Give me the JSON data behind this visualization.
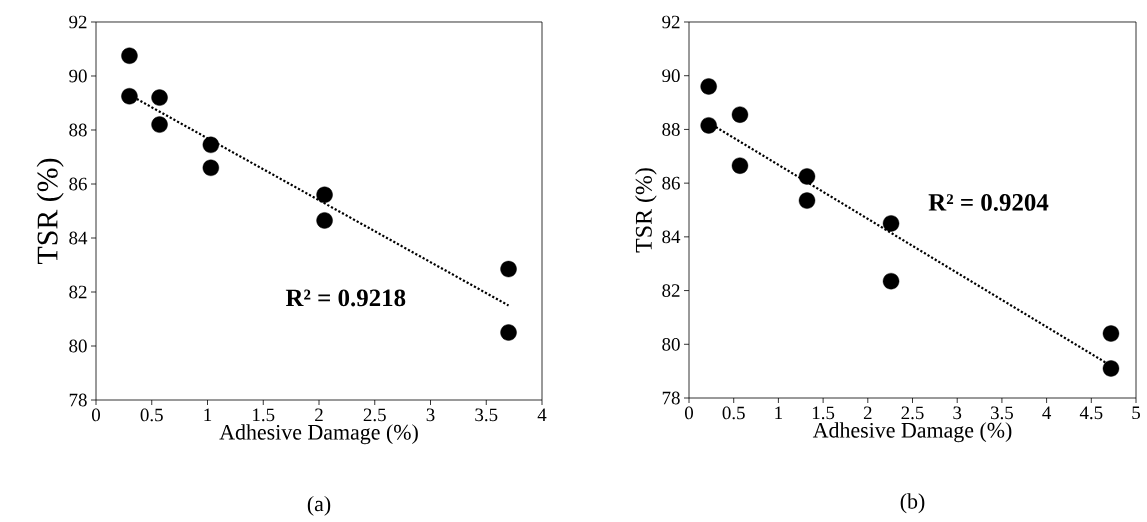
{
  "chart_data": [
    {
      "type": "scatter",
      "xlabel": "Adhesive Damage (%)",
      "ylabel": "TSR (%)",
      "xlim": [
        0,
        4
      ],
      "ylim": [
        78,
        92
      ],
      "xticks": [
        0,
        0.5,
        1,
        1.5,
        2,
        2.5,
        3,
        3.5,
        4
      ],
      "yticks": [
        78,
        80,
        82,
        84,
        86,
        88,
        90,
        92
      ],
      "annotations": [
        "R² = 0.9218",
        "(a)"
      ],
      "series": [
        {
          "color": "#000000",
          "marker": "circle",
          "x": [
            0.3,
            0.3,
            0.57,
            0.57,
            1.03,
            1.03,
            2.05,
            2.05,
            3.7,
            3.7
          ],
          "values": [
            90.75,
            89.25,
            89.2,
            88.2,
            87.45,
            86.6,
            85.6,
            84.65,
            82.85,
            80.5
          ]
        },
        {
          "type": "line",
          "color": "#000000",
          "marker": "none",
          "line_style": "dotted",
          "x": [
            0.3,
            3.7
          ],
          "values": [
            89.3,
            81.5
          ]
        }
      ]
    },
    {
      "type": "scatter",
      "xlabel": "Adhesive Damage (%)",
      "ylabel": "TSR (%)",
      "xlim": [
        0,
        5
      ],
      "ylim": [
        78,
        92
      ],
      "xticks": [
        0,
        0.5,
        1,
        1.5,
        2,
        2.5,
        3,
        3.5,
        4,
        4.5,
        5
      ],
      "yticks": [
        78,
        80,
        82,
        84,
        86,
        88,
        90,
        92
      ],
      "annotations": [
        "R² = 0.9204",
        "(b)"
      ],
      "series": [
        {
          "color": "#000000",
          "marker": "circle",
          "x": [
            0.22,
            0.22,
            0.57,
            0.57,
            1.32,
            1.32,
            2.26,
            2.26,
            4.72,
            4.72
          ],
          "values": [
            89.6,
            88.15,
            88.55,
            86.65,
            86.25,
            85.35,
            84.5,
            82.35,
            80.4,
            79.1
          ]
        },
        {
          "type": "line",
          "color": "#000000",
          "marker": "none",
          "line_style": "dotted",
          "x": [
            0.22,
            4.72
          ],
          "values": [
            88.25,
            79.2
          ]
        }
      ]
    }
  ]
}
